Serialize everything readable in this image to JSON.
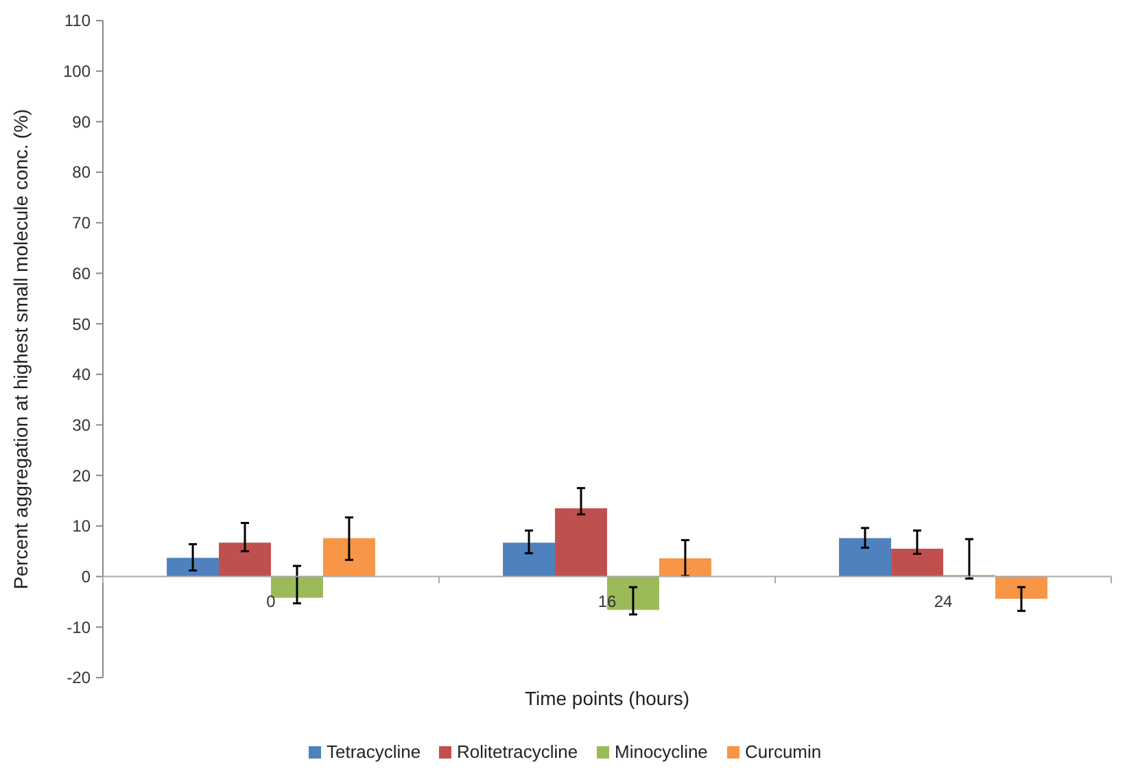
{
  "chart_data": {
    "type": "bar",
    "xlabel": "Time points (hours)",
    "ylabel": "Percent aggregation at highest small molecule conc. (%)",
    "categories": [
      "0",
      "16",
      "24"
    ],
    "series": [
      {
        "name": "Tetracycline",
        "color": "#4f81bd",
        "values": [
          3.7,
          6.7,
          7.6
        ],
        "errors": [
          [
            1.2,
            6.4
          ],
          [
            4.6,
            9.1
          ],
          [
            5.7,
            9.6
          ]
        ]
      },
      {
        "name": "Rolitetracycline",
        "color": "#c0504d",
        "values": [
          6.7,
          13.5,
          5.5
        ],
        "errors": [
          [
            5,
            10.6
          ],
          [
            12.3,
            17.5
          ],
          [
            4.5,
            9.1
          ]
        ]
      },
      {
        "name": "Minocycline",
        "color": "#9bbb59",
        "values": [
          -4.2,
          -6.6,
          0.3
        ],
        "errors": [
          [
            -5.3,
            2.1
          ],
          [
            -7.5,
            -2.1
          ],
          [
            -0.4,
            7.4
          ]
        ]
      },
      {
        "name": "Curcumin",
        "color": "#f79646",
        "values": [
          7.6,
          3.6,
          -4.4
        ],
        "errors": [
          [
            3.3,
            11.7
          ],
          [
            0.1,
            7.2
          ],
          [
            -6.8,
            -2.1
          ]
        ]
      }
    ],
    "ylim": [
      -20,
      110
    ],
    "yticks": [
      -20,
      -10,
      0,
      10,
      20,
      30,
      40,
      50,
      60,
      70,
      80,
      90,
      100,
      110
    ],
    "grid": false,
    "legend": "bottom"
  }
}
